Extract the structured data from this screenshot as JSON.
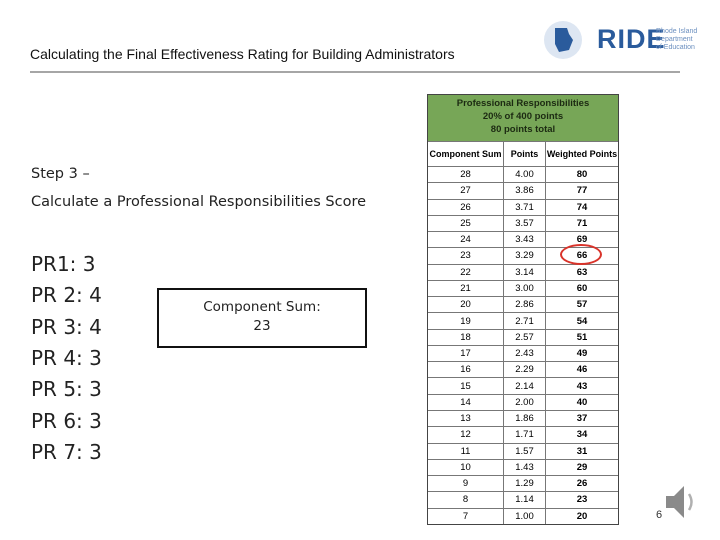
{
  "header": {
    "title": "Calculating the Final Effectiveness Rating for Building Administrators",
    "logo": {
      "name": "RIDE",
      "lines": [
        "Rhode Island",
        "Department",
        "of Education"
      ]
    }
  },
  "step": {
    "heading": "Step 3 –",
    "text": "Calculate a Professional Responsibilities Score"
  },
  "scores": [
    "PR1: 3",
    "PR 2: 4",
    "PR 3: 4",
    "PR 4: 3",
    "PR 5: 3",
    "PR 6: 3",
    "PR 7: 3"
  ],
  "callout": {
    "label": "Component Sum:",
    "value": "23"
  },
  "table": {
    "title_lines": [
      "Professional Responsibilities",
      "20% of 400 points",
      "80 points total"
    ],
    "columns": [
      "Component Sum",
      "Points",
      "Weighted Points"
    ],
    "rows": [
      [
        "28",
        "4.00",
        "80"
      ],
      [
        "27",
        "3.86",
        "77"
      ],
      [
        "26",
        "3.71",
        "74"
      ],
      [
        "25",
        "3.57",
        "71"
      ],
      [
        "24",
        "3.43",
        "69"
      ],
      [
        "23",
        "3.29",
        "66"
      ],
      [
        "22",
        "3.14",
        "63"
      ],
      [
        "21",
        "3.00",
        "60"
      ],
      [
        "20",
        "2.86",
        "57"
      ],
      [
        "19",
        "2.71",
        "54"
      ],
      [
        "18",
        "2.57",
        "51"
      ],
      [
        "17",
        "2.43",
        "49"
      ],
      [
        "16",
        "2.29",
        "46"
      ],
      [
        "15",
        "2.14",
        "43"
      ],
      [
        "14",
        "2.00",
        "40"
      ],
      [
        "13",
        "1.86",
        "37"
      ],
      [
        "12",
        "1.71",
        "34"
      ],
      [
        "11",
        "1.57",
        "31"
      ],
      [
        "10",
        "1.43",
        "29"
      ],
      [
        "9",
        "1.29",
        "26"
      ],
      [
        "8",
        "1.14",
        "23"
      ],
      [
        "7",
        "1.00",
        "20"
      ]
    ]
  },
  "slide_number": "6"
}
